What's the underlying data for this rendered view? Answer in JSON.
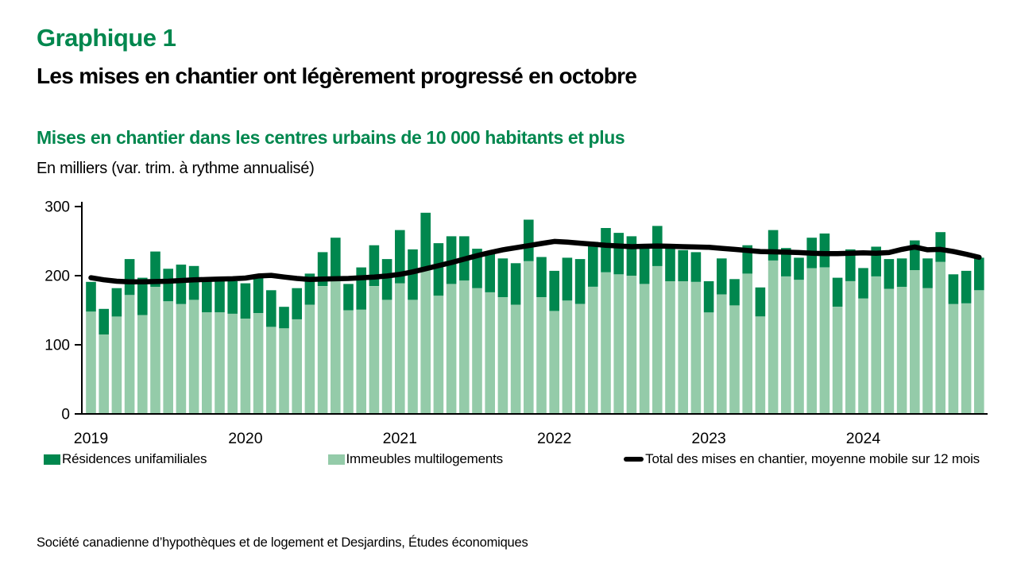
{
  "theme": {
    "brand_green": "#00874E",
    "bar_dark_green": "#00874E",
    "bar_light_green": "#94CBA9",
    "line_black": "#000000",
    "text_black": "#000000",
    "background": "#ffffff"
  },
  "header": {
    "figure_label": "Graphique 1",
    "headline": "Les mises en chantier ont légèrement progressé en octobre",
    "chart_title": "Mises en chantier dans les centres urbains de 10 000 habitants et plus",
    "units_label": "En milliers (var. trim. à rythme annualisé)"
  },
  "legend": [
    {
      "label": "Résidences unifamiliales",
      "color": "#00874E",
      "type": "swatch"
    },
    {
      "label": "Immeubles multilogements",
      "color": "#94CBA9",
      "type": "swatch"
    },
    {
      "label": "Total des mises en chantier, moyenne mobile sur 12 mois",
      "color": "#000000",
      "type": "line"
    }
  ],
  "source": "Société canadienne d’hypothèques et de logement et Desjardins, Études économiques",
  "chart_data": {
    "type": "bar",
    "subtype": "stacked-bars-with-line-overlay",
    "title": "Mises en chantier dans les centres urbains de 10 000 habitants et plus",
    "ylabel": "En milliers (var. trim. à rythme annualisé)",
    "frequency": "monthly",
    "x_start": "2019-01",
    "x_end": "2024-10",
    "x_tick_labels": [
      "2019",
      "2020",
      "2021",
      "2022",
      "2023",
      "2024"
    ],
    "ylim": [
      0,
      300
    ],
    "yticks": [
      0,
      100,
      200,
      300
    ],
    "grid": false,
    "legend_position": "bottom",
    "series": [
      {
        "name": "Résidences unifamiliales",
        "type": "bar",
        "stack": "top",
        "color": "#00874E",
        "values": [
          43,
          37,
          41,
          52,
          54,
          51,
          47,
          57,
          49,
          50,
          46,
          47,
          51,
          55,
          53,
          31,
          45,
          45,
          49,
          58,
          38,
          61,
          59,
          59,
          77,
          73,
          79,
          76,
          69,
          64,
          57,
          58,
          56,
          60,
          60,
          58,
          58,
          62,
          65,
          65,
          64,
          60,
          57,
          55,
          58,
          54,
          45,
          43,
          45,
          52,
          38,
          41,
          42,
          44,
          41,
          32,
          44,
          49,
          42,
          46,
          44,
          43,
          43,
          41,
          43,
          43,
          43,
          43,
          47,
          47
        ]
      },
      {
        "name": "Immeubles multilogements",
        "type": "bar",
        "stack": "bottom",
        "color": "#94CBA9",
        "values": [
          148,
          115,
          141,
          172,
          143,
          184,
          163,
          159,
          165,
          147,
          147,
          145,
          138,
          146,
          126,
          124,
          137,
          158,
          185,
          197,
          150,
          151,
          185,
          165,
          189,
          165,
          212,
          171,
          188,
          193,
          182,
          176,
          169,
          158,
          221,
          169,
          149,
          164,
          159,
          184,
          205,
          202,
          200,
          188,
          214,
          192,
          192,
          191,
          147,
          173,
          157,
          203,
          141,
          222,
          199,
          194,
          211,
          212,
          155,
          192,
          167,
          199,
          181,
          184,
          208,
          182,
          220,
          159,
          160,
          179
        ]
      },
      {
        "name": "Total des mises en chantier, moyenne mobile sur 12 mois",
        "type": "line",
        "color": "#000000",
        "values": [
          197,
          194,
          192,
          191,
          191,
          191.5,
          192,
          193,
          194,
          194.5,
          195,
          195.5,
          196.5,
          199.5,
          200.5,
          198,
          196,
          194.5,
          195,
          195.5,
          196,
          197,
          198,
          199.5,
          202,
          205.5,
          210,
          214.5,
          219,
          224,
          229,
          233.5,
          237.5,
          240.5,
          243.5,
          246.5,
          249.5,
          248.5,
          247,
          245.5,
          244,
          243,
          242,
          242.5,
          243,
          242.5,
          242,
          241.5,
          241,
          239.5,
          238,
          236.5,
          235,
          234.5,
          234,
          233.5,
          232.5,
          232,
          232,
          232.5,
          233,
          232.5,
          233.5,
          238,
          241.5,
          237.5,
          238,
          235,
          231,
          226.5
        ]
      }
    ]
  }
}
